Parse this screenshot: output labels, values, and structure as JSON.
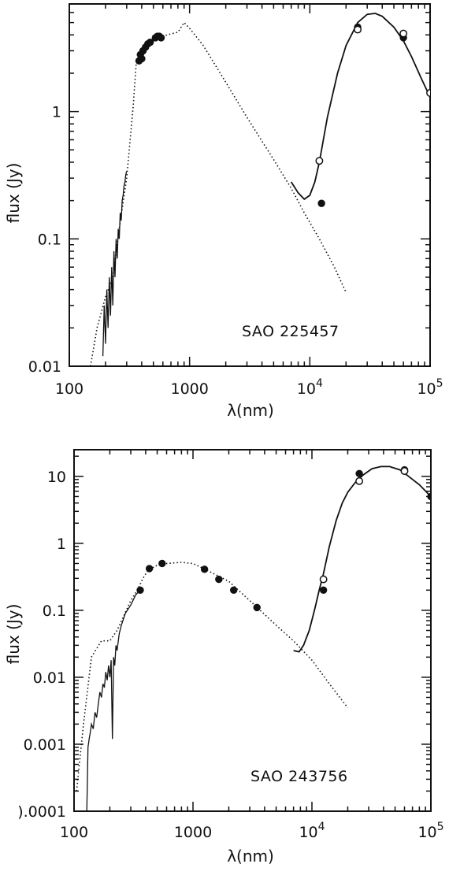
{
  "chart_data": [
    {
      "type": "scatter",
      "title": "",
      "annotation": "SAO 225457",
      "xlabel": "λ(nm)",
      "ylabel": "flux (Jy)",
      "xscale": "log",
      "yscale": "log",
      "xlim": [
        100,
        100000
      ],
      "ylim": [
        0.01,
        7
      ],
      "grid": false,
      "x_tick_labels": [
        {
          "value": 100,
          "label": "100"
        },
        {
          "value": 1000,
          "label": "1000"
        },
        {
          "value": 10000,
          "label": "10",
          "sup": "4"
        },
        {
          "value": 100000,
          "label": "10",
          "sup": "5"
        }
      ],
      "y_tick_labels": [
        {
          "value": 0.01,
          "label": "0.01"
        },
        {
          "value": 0.1,
          "label": "0.1"
        },
        {
          "value": 1,
          "label": "1"
        }
      ],
      "series": [
        {
          "style": "dotted-line",
          "x": [
            150,
            170,
            200,
            230,
            260,
            300,
            340,
            360,
            380,
            400,
            430,
            470,
            500,
            560,
            650,
            800,
            900,
            1000,
            1300,
            2000,
            3000,
            5000,
            7000,
            9000,
            12000,
            16000,
            20000
          ],
          "y": [
            0.01,
            0.02,
            0.035,
            0.05,
            0.12,
            0.3,
            1.1,
            2.4,
            2.9,
            3.0,
            3.1,
            3.3,
            3.6,
            3.8,
            4.0,
            4.2,
            5.0,
            4.5,
            3.3,
            1.7,
            0.9,
            0.42,
            0.25,
            0.16,
            0.1,
            0.06,
            0.038
          ]
        },
        {
          "style": "noisy-line",
          "x": [
            190,
            195,
            200,
            205,
            210,
            215,
            220,
            225,
            230,
            235,
            240,
            245,
            250,
            255,
            260,
            265,
            270,
            275,
            280,
            285,
            290,
            295,
            300
          ],
          "y": [
            0.012,
            0.03,
            0.015,
            0.04,
            0.02,
            0.05,
            0.025,
            0.06,
            0.03,
            0.08,
            0.05,
            0.1,
            0.07,
            0.12,
            0.1,
            0.16,
            0.14,
            0.2,
            0.22,
            0.26,
            0.28,
            0.32,
            0.34
          ]
        },
        {
          "style": "solid-line",
          "x": [
            7000,
            8000,
            9000,
            10000,
            11000,
            12000,
            14000,
            17000,
            20000,
            25000,
            30000,
            35000,
            40000,
            50000,
            60000,
            70000,
            85000,
            100000
          ],
          "y": [
            0.28,
            0.23,
            0.205,
            0.22,
            0.28,
            0.4,
            0.9,
            2.0,
            3.3,
            5.0,
            5.8,
            5.9,
            5.6,
            4.6,
            3.6,
            2.7,
            1.8,
            1.3
          ]
        },
        {
          "style": "filled-points",
          "x": [
            380,
            390,
            400,
            410,
            430,
            450,
            470,
            520,
            540,
            560,
            580,
            12500,
            25000,
            60000
          ],
          "y": [
            2.5,
            2.8,
            2.6,
            3.0,
            3.2,
            3.4,
            3.5,
            3.8,
            3.9,
            3.9,
            3.8,
            0.19,
            4.6,
            3.8
          ]
        },
        {
          "style": "open-points",
          "x": [
            12000,
            25000,
            60000,
            100000
          ],
          "y": [
            0.41,
            4.4,
            4.1,
            1.4
          ]
        }
      ]
    },
    {
      "type": "scatter",
      "title": "",
      "annotation": "SAO 243756",
      "xlabel": "λ(nm)",
      "ylabel": "flux (Jy)",
      "xscale": "log",
      "yscale": "log",
      "xlim": [
        100,
        100000
      ],
      "ylim": [
        0.0001,
        25
      ],
      "grid": false,
      "x_tick_labels": [
        {
          "value": 100,
          "label": "100"
        },
        {
          "value": 1000,
          "label": "1000"
        },
        {
          "value": 10000,
          "label": "10",
          "sup": "4"
        },
        {
          "value": 100000,
          "label": "10",
          "sup": "5"
        }
      ],
      "y_tick_labels": [
        {
          "value": 0.0001,
          "label": ").0001"
        },
        {
          "value": 0.001,
          "label": "0.001"
        },
        {
          "value": 0.01,
          "label": "0.01"
        },
        {
          "value": 0.1,
          "label": "0.1"
        },
        {
          "value": 1,
          "label": "1"
        },
        {
          "value": 10,
          "label": "10"
        }
      ],
      "series": [
        {
          "style": "dotted-line",
          "x": [
            105,
            120,
            140,
            170,
            200,
            230,
            260,
            300,
            340,
            380,
            420,
            500,
            600,
            800,
            1000,
            1300,
            2000,
            3000,
            5000,
            7000,
            10000,
            14000,
            20000
          ],
          "y": [
            0.0002,
            0.002,
            0.02,
            0.035,
            0.035,
            0.05,
            0.08,
            0.14,
            0.2,
            0.3,
            0.4,
            0.47,
            0.5,
            0.52,
            0.5,
            0.4,
            0.27,
            0.14,
            0.06,
            0.035,
            0.018,
            0.008,
            0.0035
          ]
        },
        {
          "style": "noisy-line",
          "x": [
            128,
            131,
            134,
            137,
            140,
            145,
            150,
            155,
            160,
            165,
            170,
            175,
            180,
            185,
            190,
            195,
            200,
            205,
            210,
            215,
            220,
            225,
            230,
            240,
            250,
            270,
            300,
            330,
            360
          ],
          "y": [
            0.0001,
            0.0009,
            0.0012,
            0.0015,
            0.002,
            0.0017,
            0.003,
            0.0025,
            0.004,
            0.006,
            0.005,
            0.008,
            0.007,
            0.012,
            0.009,
            0.015,
            0.01,
            0.018,
            0.0012,
            0.02,
            0.015,
            0.03,
            0.025,
            0.045,
            0.06,
            0.09,
            0.12,
            0.17,
            0.2
          ]
        },
        {
          "style": "solid-line",
          "x": [
            7000,
            7800,
            8500,
            9500,
            10500,
            11500,
            12500,
            14000,
            16000,
            18000,
            20000,
            23000,
            27000,
            32000,
            38000,
            45000,
            55000,
            65000,
            80000,
            100000
          ],
          "y": [
            0.025,
            0.024,
            0.03,
            0.05,
            0.1,
            0.2,
            0.35,
            0.9,
            2.2,
            4.0,
            5.8,
            8.0,
            10.5,
            13.0,
            14.0,
            14.0,
            12.5,
            10.0,
            7.5,
            5.0
          ]
        },
        {
          "style": "filled-points",
          "x": [
            360,
            430,
            550,
            1250,
            1650,
            2200,
            3450,
            12500,
            25000,
            60000,
            100000
          ],
          "y": [
            0.2,
            0.42,
            0.5,
            0.41,
            0.29,
            0.2,
            0.11,
            0.2,
            11.0,
            12.5,
            5.0
          ]
        },
        {
          "style": "open-points",
          "x": [
            12500,
            25000,
            60000
          ],
          "y": [
            0.29,
            8.5,
            12.0
          ]
        }
      ]
    }
  ]
}
